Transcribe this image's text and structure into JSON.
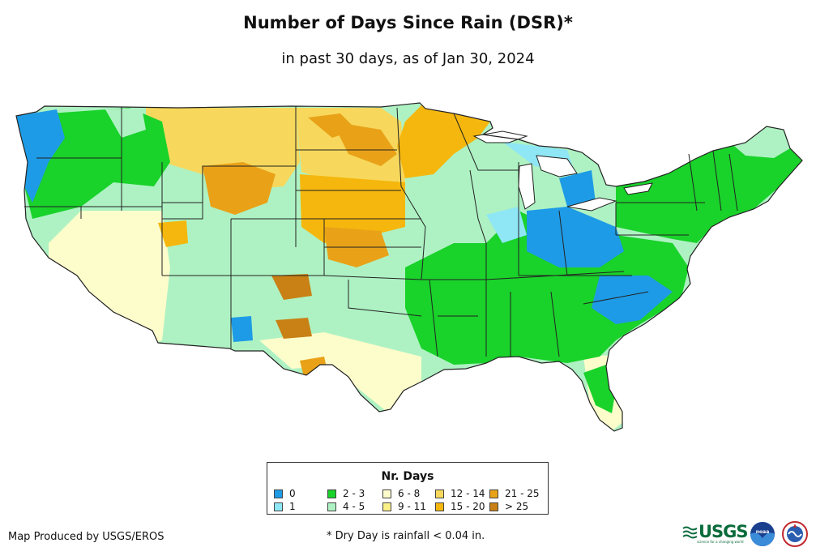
{
  "title": "Number of Days Since Rain (DSR)*",
  "subtitle": "in past 30 days, as of Jan 30, 2024",
  "legend": {
    "title": "Nr. Days",
    "items": [
      {
        "label": "0",
        "color": "#1e9be6"
      },
      {
        "label": "1",
        "color": "#8fe6f5"
      },
      {
        "label": "2 - 3",
        "color": "#19d22a"
      },
      {
        "label": "4 - 5",
        "color": "#aef2c3"
      },
      {
        "label": "6 - 8",
        "color": "#fdfccb"
      },
      {
        "label": "9 - 11",
        "color": "#faf088"
      },
      {
        "label": "12 - 14",
        "color": "#f7d85c"
      },
      {
        "label": "15 - 20",
        "color": "#f5b70d"
      },
      {
        "label": "21 - 25",
        "color": "#e9a218"
      },
      {
        "label": "> 25",
        "color": "#c98115"
      }
    ]
  },
  "footer": {
    "credit": "Map Produced by USGS/EROS",
    "footnote": "* Dry Day is rainfall < 0.04 in."
  },
  "logos": {
    "usgs": "USGS",
    "usgs_tagline": "science for a changing world",
    "noaa": "noaa"
  }
}
